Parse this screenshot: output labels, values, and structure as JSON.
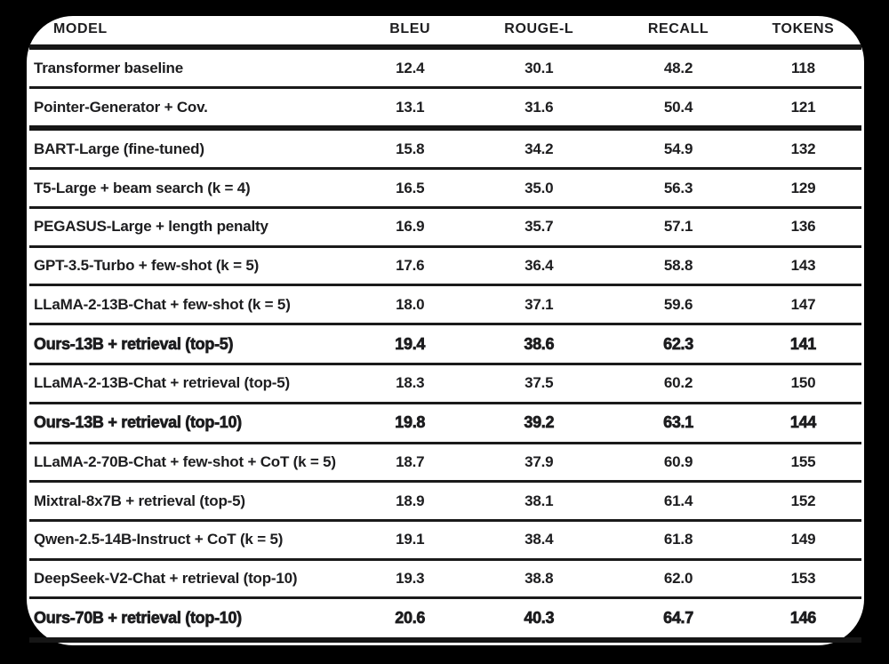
{
  "page": {
    "background_color": "#000000",
    "sheet_color": "#ffffff",
    "text_color": "#1d1d1f"
  },
  "table": {
    "columns": {
      "model": "Model",
      "bleu": "BLEU",
      "rouge": "Rouge-L",
      "recall": "Recall",
      "tokens": "Tokens"
    },
    "rows": [
      {
        "model": "Transformer baseline",
        "bleu": "12.4",
        "rouge": "30.1",
        "recall": "48.2",
        "tokens": "118"
      },
      {
        "model": "Pointer-Generator + Cov.",
        "bleu": "13.1",
        "rouge": "31.6",
        "recall": "50.4",
        "tokens": "121"
      },
      {
        "model": "BART-Large (fine-tuned)",
        "bleu": "15.8",
        "rouge": "34.2",
        "recall": "54.9",
        "tokens": "132"
      },
      {
        "model": "T5-Large + beam search (k = 4)",
        "bleu": "16.5",
        "rouge": "35.0",
        "recall": "56.3",
        "tokens": "129"
      },
      {
        "model": "PEGASUS-Large + length penalty",
        "bleu": "16.9",
        "rouge": "35.7",
        "recall": "57.1",
        "tokens": "136"
      },
      {
        "model": "GPT-3.5-Turbo + few-shot (k = 5)",
        "bleu": "17.6",
        "rouge": "36.4",
        "recall": "58.8",
        "tokens": "143"
      },
      {
        "model": "LLaMA-2-13B-Chat + few-shot (k = 5)",
        "bleu": "18.0",
        "rouge": "37.1",
        "recall": "59.6",
        "tokens": "147"
      },
      {
        "model": "Ours-13B + retrieval (top-5)",
        "bleu": "19.4",
        "rouge": "38.6",
        "recall": "62.3",
        "tokens": "141"
      },
      {
        "model": "LLaMA-2-13B-Chat + retrieval (top-5)",
        "bleu": "18.3",
        "rouge": "37.5",
        "recall": "60.2",
        "tokens": "150"
      },
      {
        "model": "Ours-13B + retrieval (top-10)",
        "bleu": "19.8",
        "rouge": "39.2",
        "recall": "63.1",
        "tokens": "144"
      },
      {
        "model": "LLaMA-2-70B-Chat + few-shot + CoT (k = 5)",
        "bleu": "18.7",
        "rouge": "37.9",
        "recall": "60.9",
        "tokens": "155"
      },
      {
        "model": "Mixtral-8x7B + retrieval (top-5)",
        "bleu": "18.9",
        "rouge": "38.1",
        "recall": "61.4",
        "tokens": "152"
      },
      {
        "model": "Qwen-2.5-14B-Instruct + CoT (k = 5)",
        "bleu": "19.1",
        "rouge": "38.4",
        "recall": "61.8",
        "tokens": "149"
      },
      {
        "model": "DeepSeek-V2-Chat + retrieval (top-10)",
        "bleu": "19.3",
        "rouge": "38.8",
        "recall": "62.0",
        "tokens": "153"
      },
      {
        "model": "Ours-70B + retrieval (top-10)",
        "bleu": "20.6",
        "rouge": "40.3",
        "recall": "64.7",
        "tokens": "146"
      }
    ]
  }
}
